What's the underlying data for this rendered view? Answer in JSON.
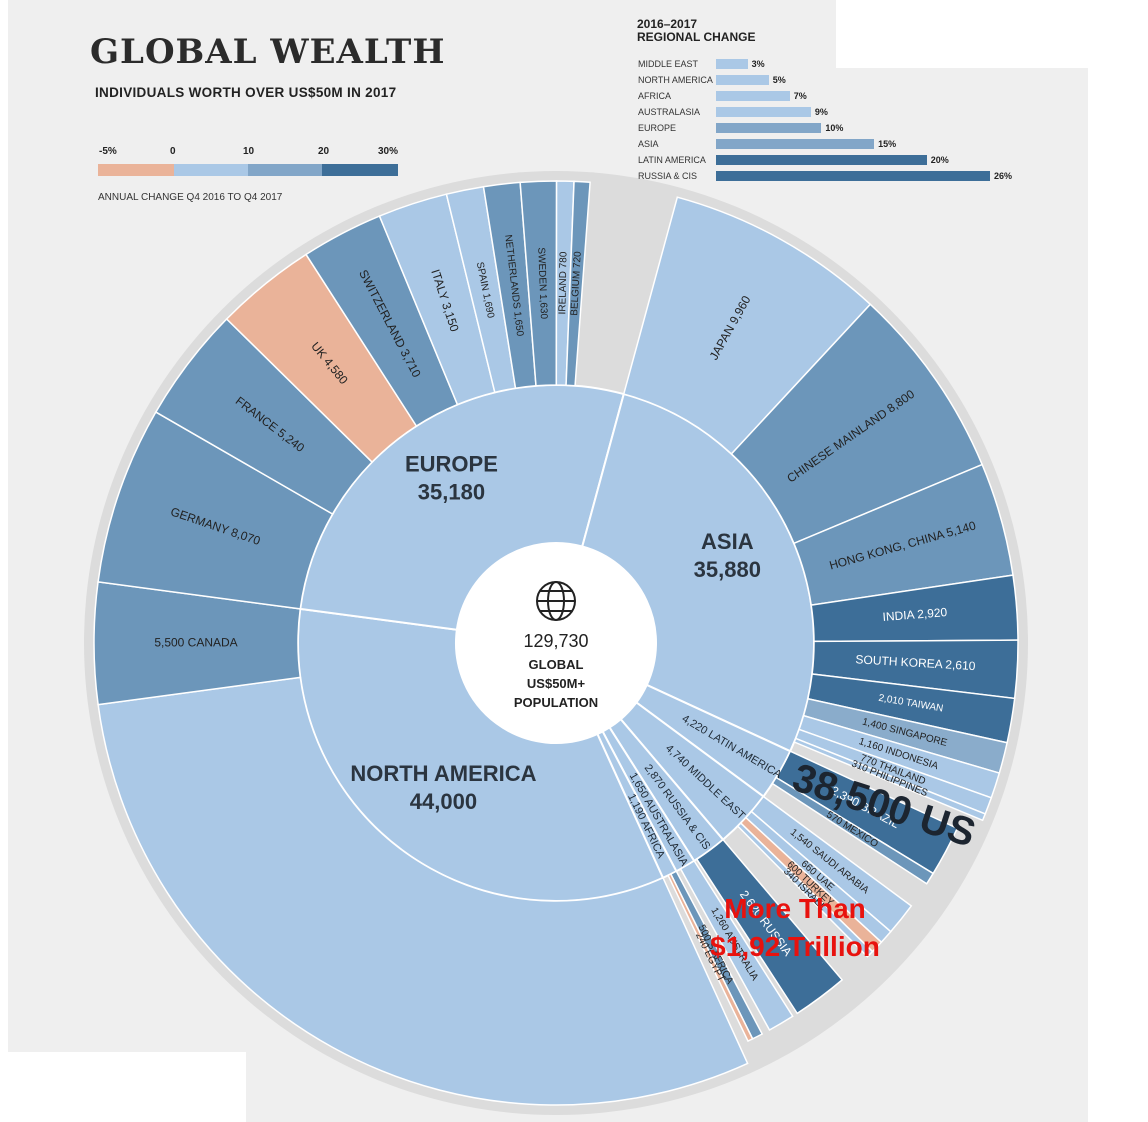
{
  "title": "GLOBAL WEALTH",
  "subtitle": "INDIVIDUALS WORTH OVER US$50M IN 2017",
  "color_scale": {
    "ticks": [
      "-5%",
      "0",
      "10",
      "20",
      "30%"
    ],
    "note": "ANNUAL CHANGE Q4 2016 TO Q4 2017",
    "colors": {
      "negative": "#eab399",
      "low": "#aac8e6",
      "mid": "#8aaccb",
      "high": "#6c96ba",
      "top": "#3d6e98"
    }
  },
  "regional_change": {
    "title_line1": "2016–2017",
    "title_line2": "REGIONAL CHANGE",
    "items": [
      {
        "label": "MIDDLE EAST",
        "value": 3,
        "text": "3%"
      },
      {
        "label": "NORTH AMERICA",
        "value": 5,
        "text": "5%"
      },
      {
        "label": "AFRICA",
        "value": 7,
        "text": "7%"
      },
      {
        "label": "AUSTRALASIA",
        "value": 9,
        "text": "9%"
      },
      {
        "label": "EUROPE",
        "value": 10,
        "text": "10%"
      },
      {
        "label": "ASIA",
        "value": 15,
        "text": "15%"
      },
      {
        "label": "LATIN AMERICA",
        "value": 20,
        "text": "20%"
      },
      {
        "label": "RUSSIA & CIS",
        "value": 26,
        "text": "26%"
      }
    ]
  },
  "center": {
    "value": "129,730",
    "line1": "GLOBAL",
    "line2": "US$50M+",
    "line3": "POPULATION"
  },
  "annotation": {
    "line1": "More Than",
    "line2": "$1,92 Trillion",
    "big": "38,500 US"
  },
  "chart_data": {
    "type": "sunburst",
    "total": 129730,
    "regions": [
      {
        "name": "NORTH AMERICA",
        "value": 44000,
        "value_text": "44,000",
        "countries": [
          {
            "name": "US",
            "value": 38500,
            "label": "",
            "tone": "low"
          },
          {
            "name": "CANADA",
            "value": 5500,
            "label": "5,500 CANADA",
            "tone": "high"
          }
        ]
      },
      {
        "name": "EUROPE",
        "value": 35180,
        "value_text": "35,180",
        "countries": [
          {
            "name": "GERMANY",
            "value": 8070,
            "label": "GERMANY 8,070",
            "tone": "high"
          },
          {
            "name": "FRANCE",
            "value": 5240,
            "label": "FRANCE 5,240",
            "tone": "high"
          },
          {
            "name": "UK",
            "value": 4580,
            "label": "UK 4,580",
            "tone": "negative"
          },
          {
            "name": "SWITZERLAND",
            "value": 3710,
            "label": "SWITZERLAND 3,710",
            "tone": "high"
          },
          {
            "name": "ITALY",
            "value": 3150,
            "label": "ITALY 3,150",
            "tone": "low"
          },
          {
            "name": "SPAIN",
            "value": 1690,
            "label": "SPAIN 1,690",
            "tone": "low"
          },
          {
            "name": "NETHERLANDS",
            "value": 1650,
            "label": "NETHERLANDS 1,650",
            "tone": "high"
          },
          {
            "name": "SWEDEN",
            "value": 1630,
            "label": "SWEDEN 1,630",
            "tone": "high"
          },
          {
            "name": "IRELAND",
            "value": 780,
            "label": "IRELAND 780",
            "tone": "low"
          },
          {
            "name": "BELGIUM",
            "value": 720,
            "label": "BELGIUM 720",
            "tone": "high"
          }
        ]
      },
      {
        "name": "ASIA",
        "value": 35880,
        "value_text": "35,880",
        "countries": [
          {
            "name": "JAPAN",
            "value": 9960,
            "label": "JAPAN 9,960",
            "tone": "low"
          },
          {
            "name": "CHINESE MAINLAND",
            "value": 8800,
            "label": "CHINESE MAINLAND 8,800",
            "tone": "high"
          },
          {
            "name": "HONG KONG, CHINA",
            "value": 5140,
            "label": "HONG KONG, CHINA 5,140",
            "tone": "high"
          },
          {
            "name": "INDIA",
            "value": 2920,
            "label": "INDIA 2,920",
            "tone": "top"
          },
          {
            "name": "SOUTH KOREA",
            "value": 2610,
            "label": "SOUTH KOREA 2,610",
            "tone": "top"
          },
          {
            "name": "TAIWAN",
            "value": 2010,
            "label": "2,010 TAIWAN",
            "tone": "top"
          },
          {
            "name": "SINGAPORE",
            "value": 1400,
            "label": "1,400 SINGAPORE",
            "tone": "mid"
          },
          {
            "name": "INDONESIA",
            "value": 1160,
            "label": "1,160 INDONESIA",
            "tone": "low"
          },
          {
            "name": "THAILAND",
            "value": 770,
            "label": "770 THAILAND",
            "tone": "low"
          },
          {
            "name": "PHILIPPINES",
            "value": 310,
            "label": "310 PHILIPPINES",
            "tone": "low"
          }
        ]
      },
      {
        "name": "LATIN AMERICA",
        "value": 4220,
        "value_text": "4,220",
        "countries": [
          {
            "name": "BRAZIL",
            "value": 2390,
            "label": "2,390 BRAZIL",
            "tone": "top"
          },
          {
            "name": "MEXICO",
            "value": 570,
            "label": "570 MEXICO",
            "tone": "high"
          }
        ]
      },
      {
        "name": "MIDDLE EAST",
        "value": 4740,
        "value_text": "4,740",
        "countries": [
          {
            "name": "SAUDI ARABIA",
            "value": 1540,
            "label": "1,540 SAUDI ARABIA",
            "tone": "low"
          },
          {
            "name": "UAE",
            "value": 660,
            "label": "660 UAE",
            "tone": "low"
          },
          {
            "name": "TURKEY",
            "value": 600,
            "label": "600 TURKEY",
            "tone": "negative"
          },
          {
            "name": "ISRAEL",
            "value": 340,
            "label": "340 ISRAEL",
            "tone": "low"
          }
        ]
      },
      {
        "name": "RUSSIA & CIS",
        "value": 2870,
        "value_text": "2,870",
        "countries": [
          {
            "name": "RUSSIA",
            "value": 2620,
            "label": "2,620 RUSSIA",
            "tone": "top"
          }
        ]
      },
      {
        "name": "AUSTRALASIA",
        "value": 1650,
        "value_text": "1,650",
        "countries": [
          {
            "name": "AUSTRALIA",
            "value": 1260,
            "label": "1,260 AUSTRALIA",
            "tone": "low"
          }
        ]
      },
      {
        "name": "AFRICA",
        "value": 1190,
        "value_text": "1,190",
        "countries": [
          {
            "name": "S AFRICA",
            "value": 500,
            "label": "500 S AFRICA",
            "tone": "high"
          },
          {
            "name": "EGYPT",
            "value": 240,
            "label": "240 EGYPT",
            "tone": "negative"
          }
        ]
      }
    ]
  }
}
